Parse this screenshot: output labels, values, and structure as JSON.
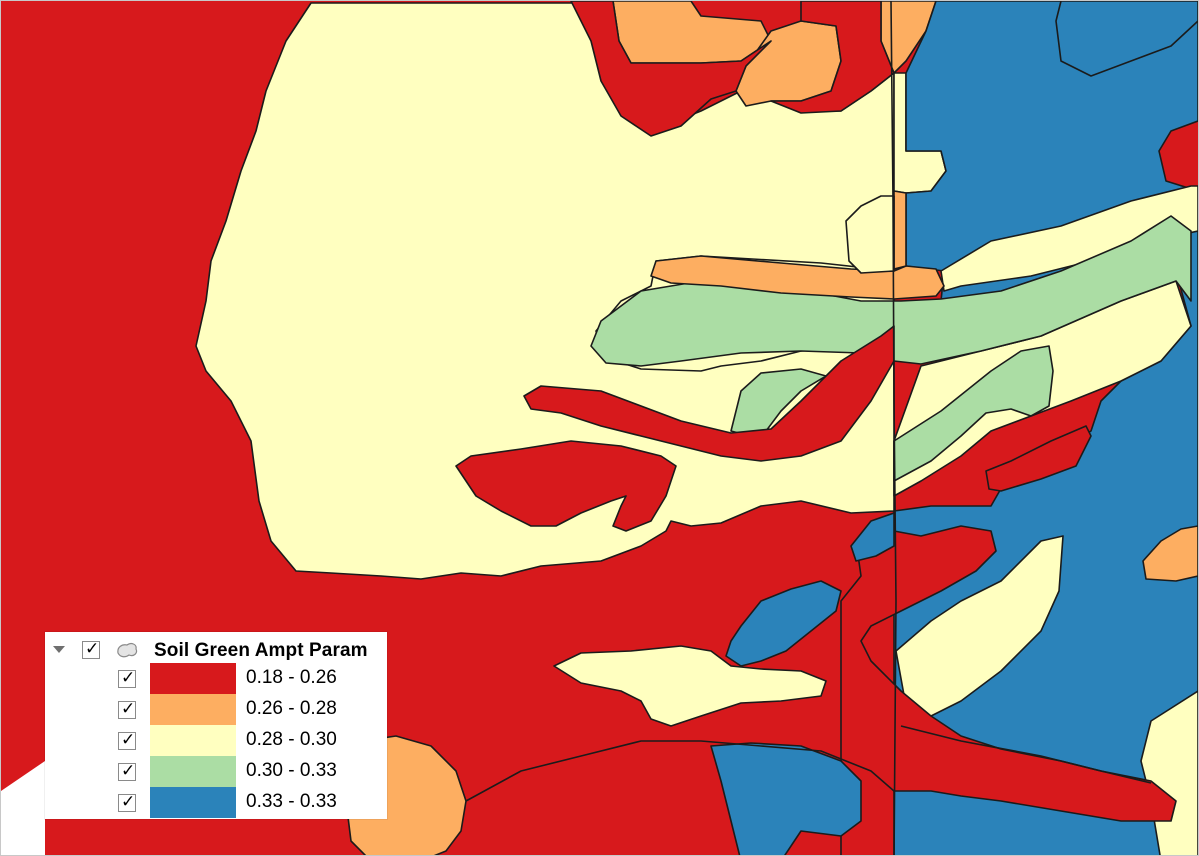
{
  "legend": {
    "layer_name": "Soil Green Ampt Param",
    "layer_icon": "polygon-layer-icon",
    "layer_visible": true,
    "classes": [
      {
        "label": "0.18 - 0.26",
        "color": "#d7191c",
        "checked": true
      },
      {
        "label": "0.26 - 0.28",
        "color": "#fdae61",
        "checked": true
      },
      {
        "label": "0.28 - 0.30",
        "color": "#ffffc0",
        "checked": true
      },
      {
        "label": "0.30 - 0.33",
        "color": "#abdda4",
        "checked": true
      },
      {
        "label": "0.33 - 0.33",
        "color": "#2b83ba",
        "checked": true
      }
    ]
  },
  "map": {
    "polygon_colors": {
      "red": "#d7191c",
      "orange": "#fdae61",
      "cream": "#ffffc0",
      "green": "#abdda4",
      "blue": "#2b83ba"
    }
  }
}
